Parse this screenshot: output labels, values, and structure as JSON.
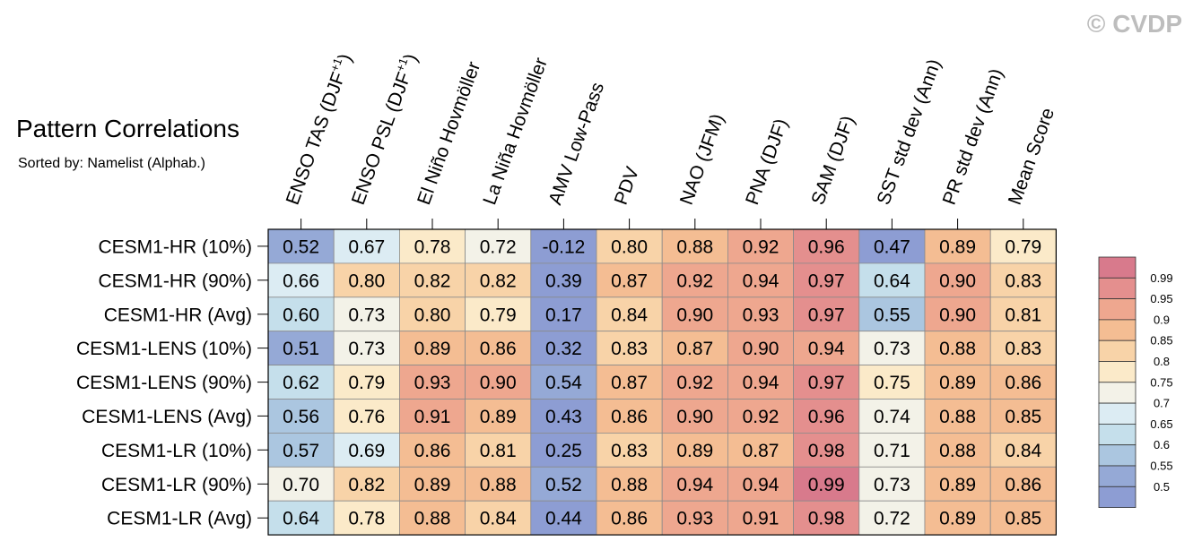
{
  "chart_data": {
    "type": "heatmap",
    "title": "Pattern Correlations",
    "subtitle": "Sorted by: Namelist (Alphab.)",
    "watermark": "© CVDP",
    "columns": [
      {
        "text": "ENSO TAS (DJF",
        "sup": "+1",
        "close": ")"
      },
      {
        "text": "ENSO PSL (DJF",
        "sup": "+1",
        "close": ")"
      },
      {
        "text": "El Niño Hovmöller",
        "sup": "",
        "close": ""
      },
      {
        "text": "La Niña Hovmöller",
        "sup": "",
        "close": ""
      },
      {
        "text": "AMV Low-Pass",
        "sup": "",
        "close": ""
      },
      {
        "text": "PDV",
        "sup": "",
        "close": ""
      },
      {
        "text": "NAO (JFM)",
        "sup": "",
        "close": ""
      },
      {
        "text": "PNA (DJF)",
        "sup": "",
        "close": ""
      },
      {
        "text": "SAM (DJF)",
        "sup": "",
        "close": ""
      },
      {
        "text": "SST std dev (Ann)",
        "sup": "",
        "close": ""
      },
      {
        "text": "PR std dev (Ann)",
        "sup": "",
        "close": ""
      },
      {
        "text": "Mean Score",
        "sup": "",
        "close": ""
      }
    ],
    "rows": [
      "CESM1-HR (10%)",
      "CESM1-HR (90%)",
      "CESM1-HR (Avg)",
      "CESM1-LENS (10%)",
      "CESM1-LENS (90%)",
      "CESM1-LENS (Avg)",
      "CESM1-LR (10%)",
      "CESM1-LR (90%)",
      "CESM1-LR (Avg)"
    ],
    "values": [
      [
        0.52,
        0.67,
        0.78,
        0.72,
        -0.12,
        0.8,
        0.88,
        0.92,
        0.96,
        0.47,
        0.89,
        0.79
      ],
      [
        0.66,
        0.8,
        0.82,
        0.82,
        0.39,
        0.87,
        0.92,
        0.94,
        0.97,
        0.64,
        0.9,
        0.83
      ],
      [
        0.6,
        0.73,
        0.8,
        0.79,
        0.17,
        0.84,
        0.9,
        0.93,
        0.97,
        0.55,
        0.9,
        0.81
      ],
      [
        0.51,
        0.73,
        0.89,
        0.86,
        0.32,
        0.83,
        0.87,
        0.9,
        0.94,
        0.73,
        0.88,
        0.83
      ],
      [
        0.62,
        0.79,
        0.93,
        0.9,
        0.54,
        0.87,
        0.92,
        0.94,
        0.97,
        0.75,
        0.89,
        0.86
      ],
      [
        0.56,
        0.76,
        0.91,
        0.89,
        0.43,
        0.86,
        0.9,
        0.92,
        0.96,
        0.74,
        0.88,
        0.85
      ],
      [
        0.57,
        0.69,
        0.86,
        0.81,
        0.25,
        0.83,
        0.89,
        0.87,
        0.98,
        0.71,
        0.88,
        0.84
      ],
      [
        0.7,
        0.82,
        0.89,
        0.88,
        0.52,
        0.88,
        0.94,
        0.94,
        0.99,
        0.73,
        0.89,
        0.86
      ],
      [
        0.64,
        0.78,
        0.88,
        0.84,
        0.44,
        0.86,
        0.93,
        0.91,
        0.98,
        0.72,
        0.89,
        0.85
      ]
    ],
    "colorbar": {
      "levels": [
        "0.99",
        "0.95",
        "0.9",
        "0.85",
        "0.8",
        "0.75",
        "0.7",
        "0.65",
        "0.6",
        "0.55",
        "0.5"
      ],
      "colors": [
        "#d87a8c",
        "#e48f8e",
        "#eea78f",
        "#f4bd93",
        "#f8d3a8",
        "#fbeac9",
        "#f3f2e8",
        "#dcecf3",
        "#c5dfeb",
        "#abc6e0",
        "#95a9d6",
        "#8d9dd3"
      ]
    }
  }
}
